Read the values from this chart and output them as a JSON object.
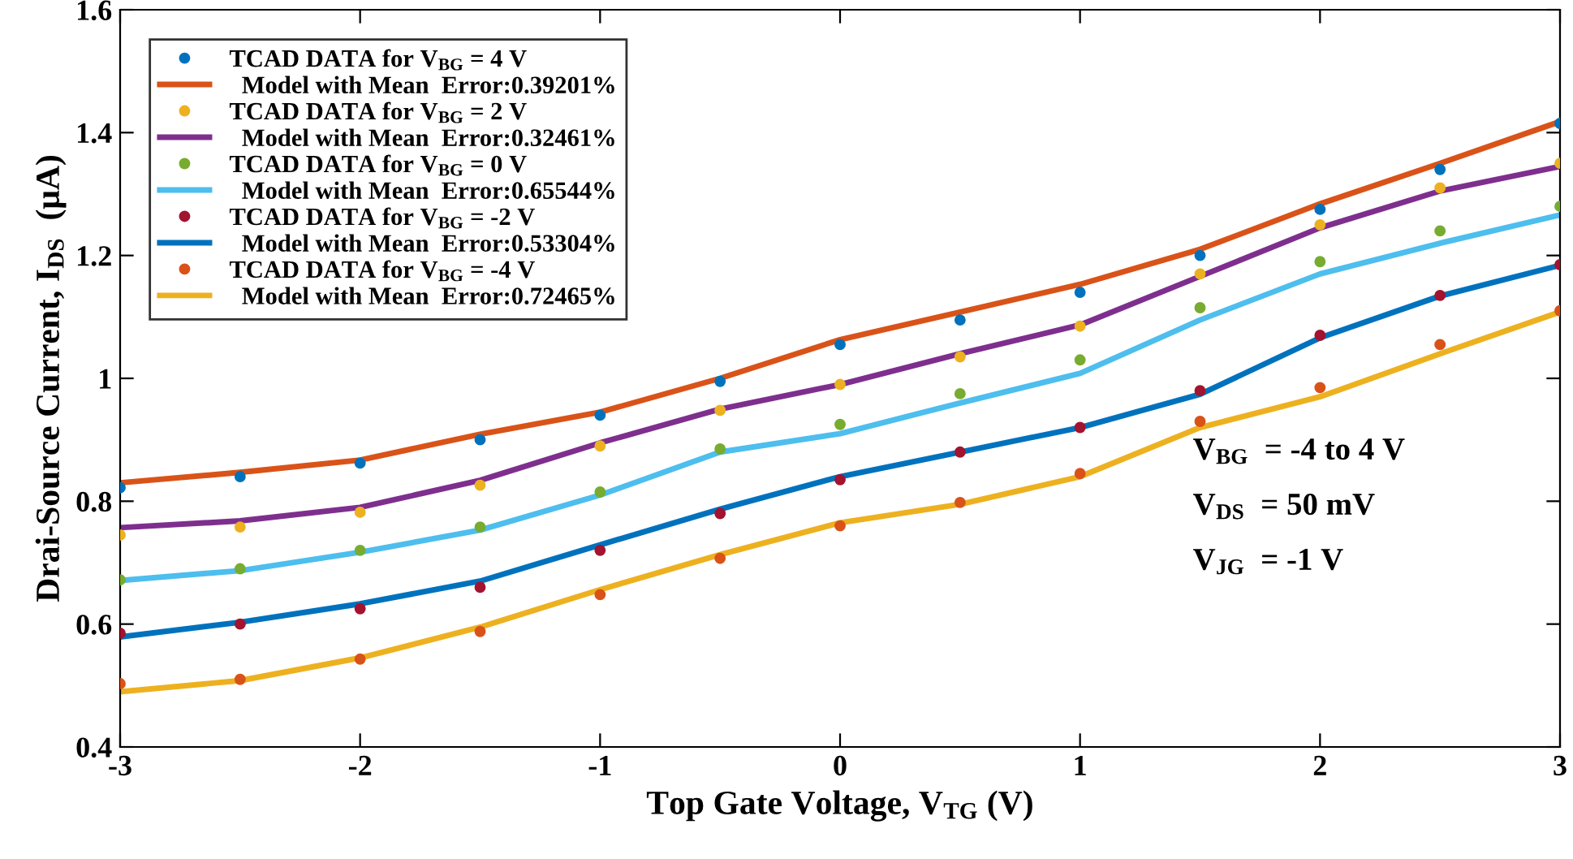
{
  "chart_data": {
    "type": "line",
    "xlabel": "Top Gate Voltage, V$_{TG}$ (V)",
    "ylabel": "Drai-Source Current, I$_{DS}$  (μA)",
    "x": [
      -3,
      -2.5,
      -2,
      -1.5,
      -1,
      -0.5,
      0,
      0.5,
      1,
      1.5,
      2,
      2.5,
      3
    ],
    "series": [
      {
        "name": "TCAD DATA for V$_{BG}$ = 4 V",
        "type": "scatter",
        "marker": "circle",
        "color": "#0072bd",
        "values": [
          0.822,
          0.84,
          0.862,
          0.9,
          0.94,
          0.995,
          1.055,
          1.095,
          1.14,
          1.2,
          1.275,
          1.34,
          1.415
        ]
      },
      {
        "name": "  Model with Mean  Error:0.39201%",
        "color": "#d95319",
        "values": [
          0.83,
          0.847,
          0.867,
          0.909,
          0.945,
          1.0,
          1.063,
          1.108,
          1.153,
          1.21,
          1.284,
          1.35,
          1.418
        ]
      },
      {
        "name": "TCAD DATA for V$_{BG}$ = 2 V",
        "type": "scatter",
        "marker": "circle",
        "color": "#edb120",
        "values": [
          0.745,
          0.758,
          0.782,
          0.826,
          0.89,
          0.948,
          0.99,
          1.035,
          1.085,
          1.17,
          1.25,
          1.31,
          1.35
        ]
      },
      {
        "name": "  Model with Mean  Error:0.32461%",
        "color": "#7e2f8e",
        "values": [
          0.757,
          0.768,
          0.79,
          0.834,
          0.895,
          0.95,
          0.99,
          1.04,
          1.087,
          1.166,
          1.245,
          1.305,
          1.345
        ]
      },
      {
        "name": "TCAD DATA for V$_{BG}$ = 0 V",
        "type": "scatter",
        "marker": "circle",
        "color": "#77ac30",
        "values": [
          0.672,
          0.69,
          0.72,
          0.758,
          0.815,
          0.885,
          0.925,
          0.975,
          1.03,
          1.115,
          1.19,
          1.24,
          1.28
        ]
      },
      {
        "name": "  Model with Mean  Error:0.65544%",
        "color": "#4dbeee",
        "values": [
          0.671,
          0.687,
          0.717,
          0.753,
          0.81,
          0.88,
          0.91,
          0.96,
          1.008,
          1.095,
          1.17,
          1.22,
          1.266
        ]
      },
      {
        "name": "TCAD DATA for V$_{BG}$ = -2 V",
        "type": "scatter",
        "marker": "circle",
        "color": "#a2142f",
        "values": [
          0.585,
          0.6,
          0.625,
          0.66,
          0.72,
          0.78,
          0.835,
          0.88,
          0.92,
          0.98,
          1.07,
          1.135,
          1.185
        ]
      },
      {
        "name": "  Model with Mean  Error:0.53304%",
        "color": "#0072bd",
        "values": [
          0.579,
          0.603,
          0.633,
          0.67,
          0.729,
          0.787,
          0.84,
          0.88,
          0.92,
          0.974,
          1.066,
          1.134,
          1.184
        ]
      },
      {
        "name": "TCAD DATA for V$_{BG}$ = -4 V",
        "type": "scatter",
        "marker": "circle",
        "color": "#d95319",
        "values": [
          0.503,
          0.51,
          0.543,
          0.588,
          0.648,
          0.707,
          0.76,
          0.798,
          0.845,
          0.93,
          0.985,
          1.055,
          1.11
        ]
      },
      {
        "name": "  Model with Mean  Error:0.72465%",
        "color": "#edb120",
        "values": [
          0.49,
          0.508,
          0.545,
          0.595,
          0.656,
          0.713,
          0.765,
          0.795,
          0.84,
          0.92,
          0.97,
          1.04,
          1.108
        ]
      }
    ],
    "xlim": [
      -3,
      3
    ],
    "xticks": [
      -3,
      -2,
      -1,
      0,
      1,
      2,
      3
    ],
    "ylim": [
      0.4,
      1.6
    ],
    "yticks": [
      0.4,
      0.6,
      0.8,
      1,
      1.2,
      1.4,
      1.6
    ],
    "annotations": [
      "V$_{BG}$  = -4 to 4 V",
      "V$_{DS}$  = 50 mV",
      "V$_{JG}$  = -1 V"
    ],
    "legend": "top left",
    "grid": false
  }
}
